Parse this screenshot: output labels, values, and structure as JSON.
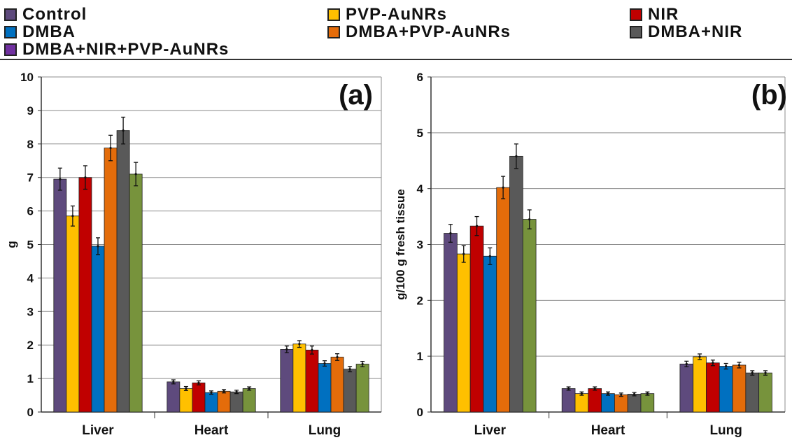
{
  "legend": {
    "items": [
      {
        "label": "Control",
        "color": "#5e4a7d"
      },
      {
        "label": "PVP-AuNRs",
        "color": "#ffc000"
      },
      {
        "label": "NIR",
        "color": "#c00000"
      },
      {
        "label": "DMBA",
        "color": "#0070c0"
      },
      {
        "label": "DMBA+PVP-AuNRs",
        "color": "#e46c0a"
      },
      {
        "label": "DMBA+NIR",
        "color": "#595959"
      },
      {
        "label": "DMBA+NIR+PVP-AuNRs",
        "color": "#7030a0"
      }
    ]
  },
  "chart_data": [
    {
      "type": "bar",
      "title": "(a)",
      "xlabel": "",
      "ylabel": "g",
      "ylim": [
        0,
        10
      ],
      "yticks": [
        0,
        1,
        2,
        3,
        4,
        5,
        6,
        7,
        8,
        9,
        10
      ],
      "grid": true,
      "categories": [
        "Liver",
        "Heart",
        "Lung"
      ],
      "series": [
        {
          "name": "Control",
          "color": "#5e4a7d",
          "values": [
            6.95,
            0.9,
            1.87
          ],
          "errors": [
            0.33,
            0.06,
            0.1
          ]
        },
        {
          "name": "PVP-AuNRs",
          "color": "#ffc000",
          "values": [
            5.85,
            0.7,
            2.03
          ],
          "errors": [
            0.3,
            0.06,
            0.1
          ]
        },
        {
          "name": "NIR",
          "color": "#c00000",
          "values": [
            7.0,
            0.87,
            1.85
          ],
          "errors": [
            0.35,
            0.06,
            0.12
          ]
        },
        {
          "name": "DMBA",
          "color": "#0070c0",
          "values": [
            4.95,
            0.58,
            1.45
          ],
          "errors": [
            0.25,
            0.05,
            0.08
          ]
        },
        {
          "name": "DMBA+PVP-AuNRs",
          "color": "#e46c0a",
          "values": [
            7.88,
            0.62,
            1.64
          ],
          "errors": [
            0.38,
            0.05,
            0.1
          ]
        },
        {
          "name": "DMBA+NIR",
          "color": "#595959",
          "values": [
            8.4,
            0.6,
            1.28
          ],
          "errors": [
            0.4,
            0.05,
            0.08
          ]
        },
        {
          "name": "DMBA+NIR+PVP-AuNRs",
          "color": "#77933c",
          "values": [
            7.1,
            0.7,
            1.43
          ],
          "errors": [
            0.35,
            0.05,
            0.08
          ]
        }
      ]
    },
    {
      "type": "bar",
      "title": "(b)",
      "xlabel": "",
      "ylabel": "g/100 g fresh tissue",
      "ylim": [
        0,
        6
      ],
      "yticks": [
        0,
        1,
        2,
        3,
        4,
        5,
        6
      ],
      "grid": true,
      "categories": [
        "Liver",
        "Heart",
        "Lung"
      ],
      "series": [
        {
          "name": "Control",
          "color": "#5e4a7d",
          "values": [
            3.2,
            0.42,
            0.86
          ],
          "errors": [
            0.16,
            0.03,
            0.05
          ]
        },
        {
          "name": "PVP-AuNRs",
          "color": "#ffc000",
          "values": [
            2.83,
            0.33,
            0.99
          ],
          "errors": [
            0.15,
            0.03,
            0.05
          ]
        },
        {
          "name": "NIR",
          "color": "#c00000",
          "values": [
            3.33,
            0.42,
            0.88
          ],
          "errors": [
            0.17,
            0.03,
            0.05
          ]
        },
        {
          "name": "DMBA",
          "color": "#0070c0",
          "values": [
            2.79,
            0.33,
            0.82
          ],
          "errors": [
            0.15,
            0.03,
            0.05
          ]
        },
        {
          "name": "DMBA+PVP-AuNRs",
          "color": "#e46c0a",
          "values": [
            4.02,
            0.31,
            0.84
          ],
          "errors": [
            0.2,
            0.03,
            0.05
          ]
        },
        {
          "name": "DMBA+NIR",
          "color": "#595959",
          "values": [
            4.58,
            0.32,
            0.7
          ],
          "errors": [
            0.22,
            0.03,
            0.04
          ]
        },
        {
          "name": "DMBA+NIR+PVP-AuNRs",
          "color": "#77933c",
          "values": [
            3.45,
            0.33,
            0.7
          ],
          "errors": [
            0.17,
            0.03,
            0.04
          ]
        }
      ]
    }
  ]
}
